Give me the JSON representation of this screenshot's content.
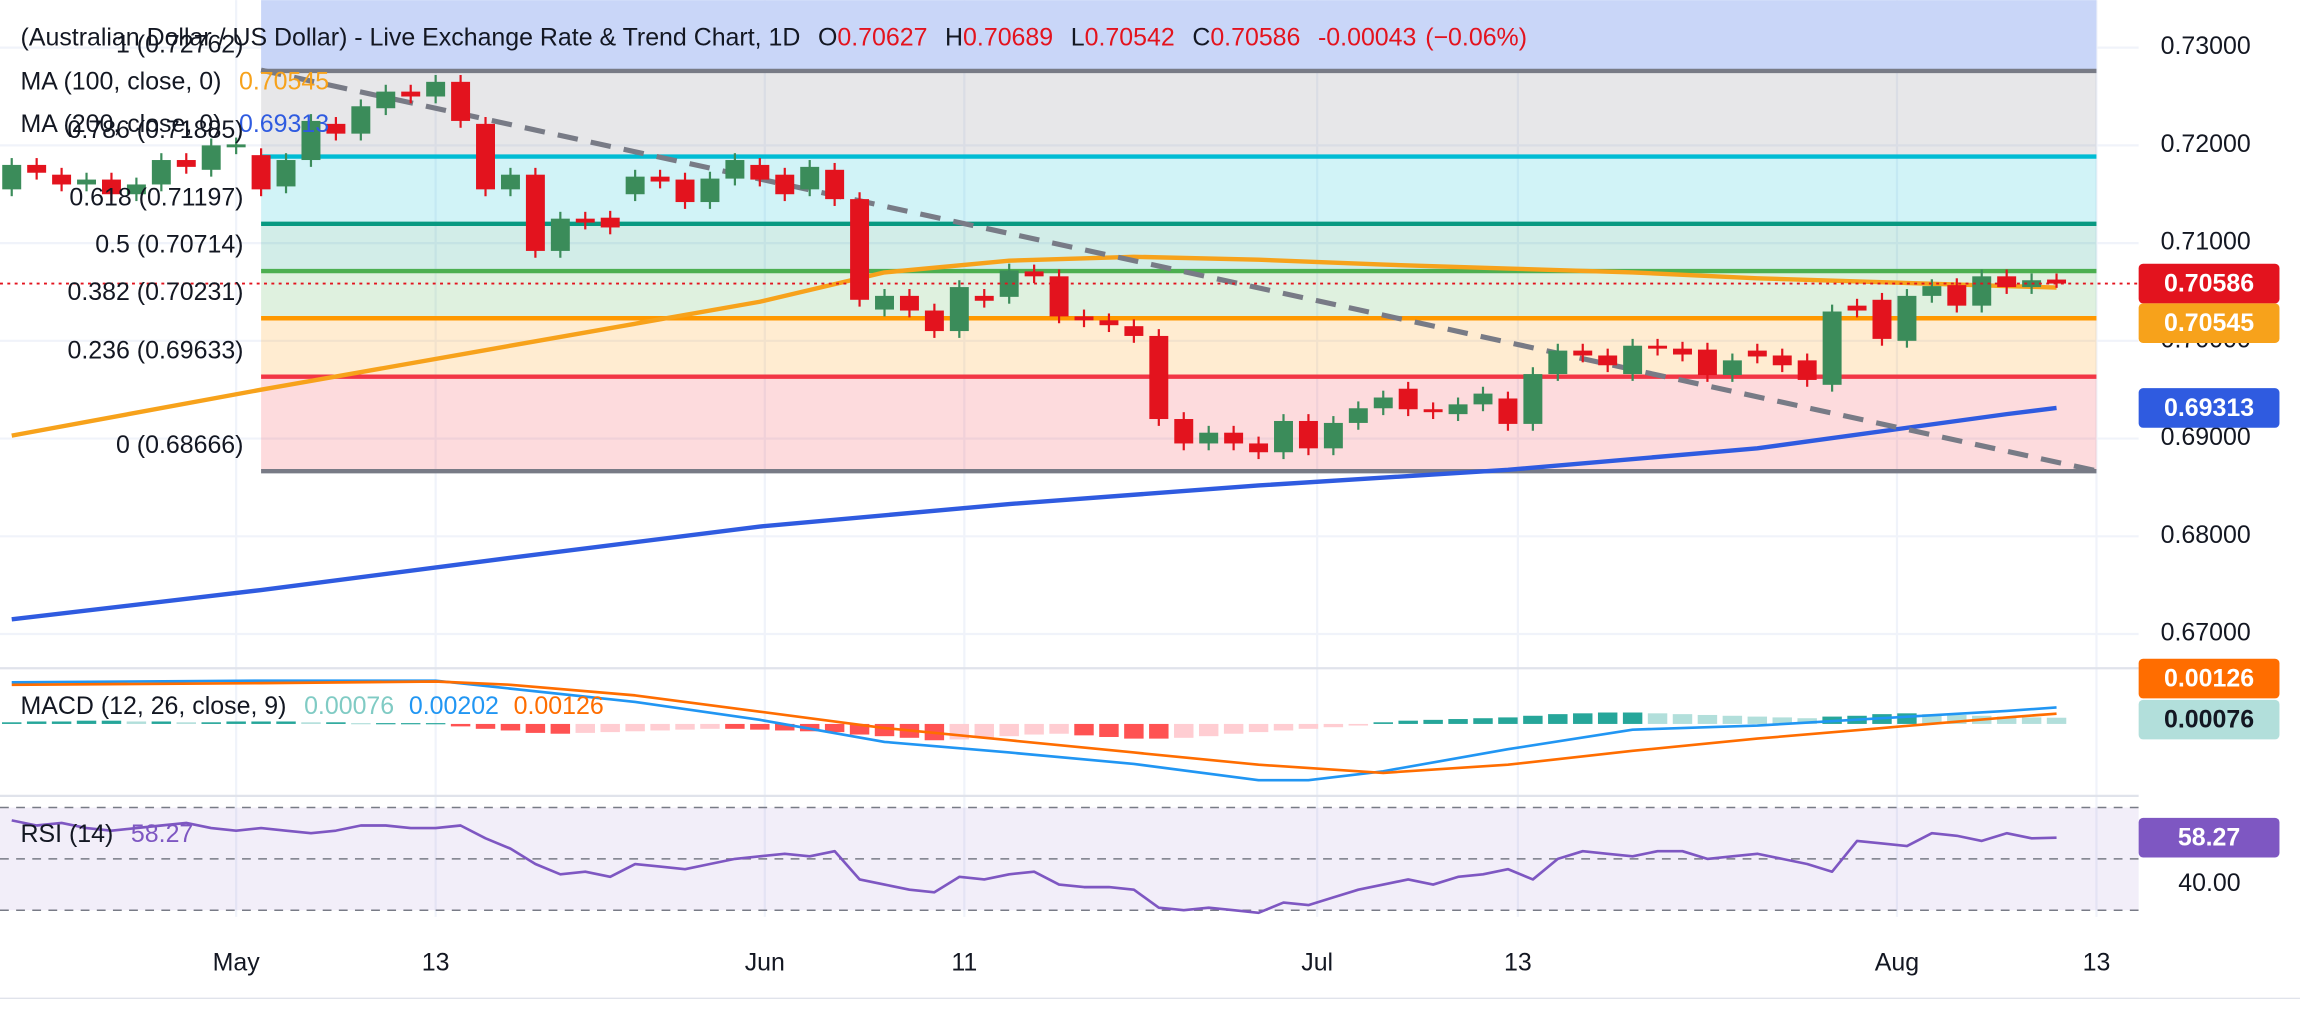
{
  "chart_data": [
    {
      "type": "candlestick",
      "title": "(Australian Dollar / US Dollar) - Live Exchange Rate & Trend Chart, 1D",
      "ohlc_labels": [
        "O",
        "H",
        "L",
        "C"
      ],
      "change": -0.00043,
      "change_pct": "(−0.06%)",
      "categories": [
        null,
        null,
        null,
        null,
        null,
        null,
        null,
        null,
        null,
        null,
        null,
        null,
        null,
        null,
        null,
        null,
        null,
        null,
        null,
        null,
        null,
        null,
        null,
        null,
        null,
        null,
        null,
        null,
        null,
        null,
        null,
        null,
        null,
        null,
        null,
        null,
        null,
        null,
        null,
        null,
        null,
        null,
        null,
        null,
        null,
        null,
        null,
        null,
        null,
        null,
        null,
        null,
        null,
        null,
        null,
        null,
        null,
        null,
        null,
        null,
        null,
        null,
        null,
        null,
        null,
        null,
        null,
        null,
        null,
        null,
        null,
        null,
        null,
        null,
        null,
        null,
        null,
        null,
        null,
        null,
        null,
        null,
        null
      ],
      "open": [
        0.7155,
        0.718,
        0.717,
        0.716,
        0.7165,
        0.715,
        0.716,
        0.7185,
        0.7175,
        0.7198,
        0.719,
        0.7158,
        0.7185,
        0.7222,
        0.7212,
        0.7238,
        0.7255,
        0.725,
        0.7265,
        0.7222,
        0.7155,
        0.717,
        0.7092,
        0.7125,
        0.7126,
        0.715,
        0.7168,
        0.7165,
        0.7142,
        0.7166,
        0.718,
        0.717,
        0.7155,
        0.7175,
        0.7145,
        0.7032,
        0.7046,
        0.7031,
        0.701,
        0.7046,
        0.7045,
        0.7071,
        0.7066,
        0.7025,
        0.7021,
        0.7015,
        0.7005,
        0.692,
        0.6895,
        0.6906,
        0.6895,
        0.6886,
        0.6918,
        0.689,
        0.6916,
        0.6931,
        0.6951,
        0.693,
        0.6925,
        0.6935,
        0.6941,
        0.6915,
        0.6966,
        0.699,
        0.6985,
        0.6966,
        0.6995,
        0.6992,
        0.6991,
        0.6965,
        0.699,
        0.6985,
        0.698,
        0.6955,
        0.7036,
        0.7042,
        0.7,
        0.7046,
        0.7057,
        0.7036,
        0.7066,
        0.7055,
        0.70627
      ],
      "high": [
        0.7187,
        0.7187,
        0.7177,
        0.7172,
        0.7172,
        0.7167,
        0.7192,
        0.7192,
        0.7207,
        0.7208,
        0.7197,
        0.7192,
        0.7232,
        0.7229,
        0.7247,
        0.7262,
        0.7262,
        0.7272,
        0.7272,
        0.7229,
        0.7177,
        0.7177,
        0.7132,
        0.7132,
        0.7133,
        0.7175,
        0.7175,
        0.7172,
        0.7173,
        0.7192,
        0.7187,
        0.7177,
        0.7185,
        0.7182,
        0.7152,
        0.7053,
        0.7053,
        0.7038,
        0.7062,
        0.7053,
        0.7079,
        0.7078,
        0.7073,
        0.7032,
        0.7028,
        0.7022,
        0.7012,
        0.6927,
        0.6913,
        0.6913,
        0.6902,
        0.6925,
        0.6925,
        0.6923,
        0.6938,
        0.6949,
        0.6958,
        0.6937,
        0.6942,
        0.6953,
        0.6948,
        0.6973,
        0.6997,
        0.6997,
        0.6992,
        0.7002,
        0.7002,
        0.6999,
        0.6998,
        0.6987,
        0.6997,
        0.6992,
        0.6987,
        0.7037,
        0.7043,
        0.7049,
        0.7053,
        0.7063,
        0.7064,
        0.7073,
        0.7073,
        0.7069,
        0.70689
      ],
      "low": [
        0.7148,
        0.7165,
        0.7153,
        0.7153,
        0.7143,
        0.7143,
        0.7153,
        0.7171,
        0.7168,
        0.7191,
        0.7148,
        0.7151,
        0.7178,
        0.7205,
        0.7205,
        0.7231,
        0.7243,
        0.7243,
        0.7218,
        0.7148,
        0.7148,
        0.7085,
        0.7085,
        0.7114,
        0.7109,
        0.7143,
        0.7156,
        0.7135,
        0.7135,
        0.7159,
        0.7158,
        0.7143,
        0.7148,
        0.7138,
        0.7035,
        0.7025,
        0.7024,
        0.7003,
        0.7003,
        0.7034,
        0.7038,
        0.7059,
        0.7018,
        0.7014,
        0.7009,
        0.6998,
        0.6913,
        0.6888,
        0.6888,
        0.6888,
        0.6879,
        0.6879,
        0.6883,
        0.6883,
        0.6909,
        0.6924,
        0.6923,
        0.692,
        0.6918,
        0.6928,
        0.6908,
        0.6908,
        0.6959,
        0.6978,
        0.6968,
        0.6959,
        0.6985,
        0.6979,
        0.6958,
        0.6958,
        0.6977,
        0.6968,
        0.6953,
        0.6948,
        0.7024,
        0.6995,
        0.6993,
        0.7039,
        0.7029,
        0.7029,
        0.7048,
        0.7048,
        0.70542
      ],
      "close": [
        0.718,
        0.7172,
        0.716,
        0.7165,
        0.715,
        0.716,
        0.7185,
        0.7178,
        0.72,
        0.7201,
        0.7155,
        0.7185,
        0.7225,
        0.7212,
        0.724,
        0.7255,
        0.725,
        0.7265,
        0.7225,
        0.7155,
        0.717,
        0.7092,
        0.7125,
        0.7121,
        0.7116,
        0.7168,
        0.7163,
        0.7142,
        0.7166,
        0.7185,
        0.7165,
        0.715,
        0.7178,
        0.7145,
        0.7042,
        0.7046,
        0.7031,
        0.701,
        0.7055,
        0.7041,
        0.7072,
        0.7066,
        0.7025,
        0.7021,
        0.7016,
        0.7005,
        0.692,
        0.6895,
        0.6906,
        0.6895,
        0.6886,
        0.6918,
        0.689,
        0.6916,
        0.6931,
        0.6942,
        0.693,
        0.6927,
        0.6935,
        0.6946,
        0.6915,
        0.6966,
        0.699,
        0.6985,
        0.6975,
        0.6995,
        0.6992,
        0.6986,
        0.6965,
        0.698,
        0.6984,
        0.6975,
        0.696,
        0.703,
        0.7031,
        0.7002,
        0.7046,
        0.7056,
        0.7036,
        0.7066,
        0.7055,
        0.7062,
        0.70586
      ],
      "up_color": "#3b8c5a",
      "down_color": "#e3131e",
      "series": [
        {
          "name": "MA (100, close, 0)",
          "color": "#f7a21b",
          "x": [
            0,
            10,
            20,
            30,
            35,
            40,
            45,
            50,
            55,
            60,
            65,
            70,
            75,
            80,
            82
          ],
          "values": [
            0.6903,
            0.695,
            0.6995,
            0.704,
            0.707,
            0.7082,
            0.7086,
            0.7083,
            0.7078,
            0.7074,
            0.707,
            0.7064,
            0.706,
            0.7056,
            0.70545
          ]
        },
        {
          "name": "MA (200, close, 0)",
          "color": "#2f5be0",
          "x": [
            0,
            10,
            20,
            30,
            40,
            50,
            60,
            70,
            80,
            82
          ],
          "values": [
            0.6715,
            0.6745,
            0.6778,
            0.681,
            0.6833,
            0.6852,
            0.6868,
            0.689,
            0.6925,
            0.69313
          ]
        }
      ],
      "fib": {
        "x": [
          10,
          83.6
        ],
        "above_color": "#c9d6f8",
        "levels": [
          {
            "label": "1 (0.72762)",
            "value": 0.72762,
            "color": "#787b86"
          },
          {
            "label": "0.786 (0.71885)",
            "value": 0.71885,
            "color": "#00bcd4"
          },
          {
            "label": "0.618 (0.71197)",
            "value": 0.71197,
            "color": "#089981"
          },
          {
            "label": "0.5 (0.70714)",
            "value": 0.70714,
            "color": "#4caf50"
          },
          {
            "label": "0.382 (0.70231)",
            "value": 0.70231,
            "color": "#ff9800"
          },
          {
            "label": "0.236 (0.69633)",
            "value": 0.69633,
            "color": "#f23645"
          },
          {
            "label": "0 (0.68666)",
            "value": 0.68666,
            "color": "#787b86"
          }
        ]
      },
      "trendline": {
        "x": [
          10,
          83.6
        ],
        "values": [
          0.7277,
          0.6867
        ],
        "color": "#787b86"
      },
      "xlim": [
        -0.47,
        85.41
      ],
      "xticks": [
        {
          "value": 9,
          "label": "May"
        },
        {
          "value": 17,
          "label": "13"
        },
        {
          "value": 30.2,
          "label": "Jun"
        },
        {
          "value": 38.2,
          "label": "11"
        },
        {
          "value": 52.35,
          "label": "Jul"
        },
        {
          "value": 60.4,
          "label": "13"
        },
        {
          "value": 75.6,
          "label": "Aug"
        },
        {
          "value": 83.6,
          "label": "13"
        }
      ],
      "ylim": [
        0.66657,
        0.73486
      ],
      "yticks": [
        {
          "value": 0.73,
          "label": "0.73000"
        },
        {
          "value": 0.72,
          "label": "0.72000"
        },
        {
          "value": 0.71,
          "label": "0.71000"
        },
        {
          "value": 0.7,
          "label": "0.70000"
        },
        {
          "value": 0.69,
          "label": "0.69000"
        },
        {
          "value": 0.68,
          "label": "0.68000"
        },
        {
          "value": 0.67,
          "label": "0.67000"
        }
      ],
      "grid": true
    },
    {
      "type": "macd",
      "title": "MACD (12, 26, close, 9)",
      "ylim": [
        -0.00855,
        0.00673
      ],
      "histogram": [
        0.0002,
        0.0003,
        0.0003,
        0.0004,
        0.0004,
        0.0003,
        0.0003,
        0.0002,
        0.0002,
        0.0003,
        0.0003,
        0.0003,
        0.0002,
        0.0002,
        0.0001,
        0.0001,
        0.0001,
        0.0001,
        -0.0003,
        -0.0006,
        -0.0008,
        -0.0011,
        -0.0012,
        -0.0011,
        -0.001,
        -0.0009,
        -0.0008,
        -0.0007,
        -0.0006,
        -0.0006,
        -0.0007,
        -0.0008,
        -0.0009,
        -0.001,
        -0.0013,
        -0.0015,
        -0.0017,
        -0.002,
        -0.0019,
        -0.0017,
        -0.0015,
        -0.0013,
        -0.0012,
        -0.0014,
        -0.0016,
        -0.0018,
        -0.0018,
        -0.0017,
        -0.0015,
        -0.0012,
        -0.001,
        -0.0008,
        -0.0006,
        -0.0004,
        -0.0002,
        0.0002,
        0.0004,
        0.0005,
        0.0006,
        0.0007,
        0.0008,
        0.001,
        0.0012,
        0.0013,
        0.0014,
        0.0014,
        0.0013,
        0.0012,
        0.0011,
        0.001,
        0.0009,
        0.0008,
        0.0007,
        0.0009,
        0.001,
        0.0012,
        0.0013,
        0.0012,
        0.0011,
        0.001,
        0.0009,
        0.0008,
        0.00076
      ],
      "histogram_colors": [
        "#26a69a",
        "#b2dfdb",
        "#ff5252",
        "#ffcdd2"
      ],
      "series": [
        {
          "color": "#2196f3",
          "x": [
            0,
            10,
            17,
            25,
            30,
            35,
            40,
            45,
            50,
            52,
            55,
            60,
            65,
            70,
            75,
            80,
            82
          ],
          "values": [
            0.0051,
            0.0053,
            0.0053,
            0.0027,
            0.0005,
            -0.0022,
            -0.0035,
            -0.0049,
            -0.0069,
            -0.0069,
            -0.0058,
            -0.0031,
            -0.0007,
            -0.0002,
            0.0007,
            0.0016,
            0.00202
          ]
        },
        {
          "color": "#ff6d00",
          "x": [
            0,
            10,
            17,
            20,
            25,
            30,
            35,
            40,
            45,
            50,
            55,
            60,
            65,
            70,
            75,
            80,
            82
          ],
          "values": [
            0.0048,
            0.005,
            0.0052,
            0.0048,
            0.0035,
            0.0015,
            -0.0005,
            -0.002,
            -0.0035,
            -0.005,
            -0.006,
            -0.005,
            -0.0033,
            -0.0018,
            -0.0005,
            0.0008,
            0.00126
          ]
        }
      ]
    },
    {
      "type": "line",
      "title": "RSI (14)",
      "color": "#7e57c2",
      "ylim": [
        27.4,
        73.1
      ],
      "yticks": [
        {
          "value": 40,
          "label": "40.00"
        }
      ],
      "bands": [
        70,
        50,
        30
      ],
      "values": [
        65,
        63,
        64,
        62,
        61,
        62,
        63,
        64,
        62,
        61,
        62,
        61,
        60,
        61,
        63,
        63,
        62,
        62,
        63,
        58,
        54,
        48,
        44,
        45,
        43,
        48,
        47,
        46,
        48,
        50,
        51,
        52,
        51,
        53,
        42,
        40,
        38,
        37,
        43,
        42,
        44,
        45,
        40,
        39,
        39,
        38,
        31,
        30,
        31,
        30,
        29,
        33,
        32,
        35,
        38,
        40,
        42,
        40,
        43,
        44,
        46,
        42,
        50,
        53,
        52,
        51,
        53,
        53,
        50,
        51,
        52,
        50,
        48,
        45,
        57,
        56,
        55,
        60,
        59,
        57,
        60,
        58,
        58.27
      ]
    }
  ]
}
